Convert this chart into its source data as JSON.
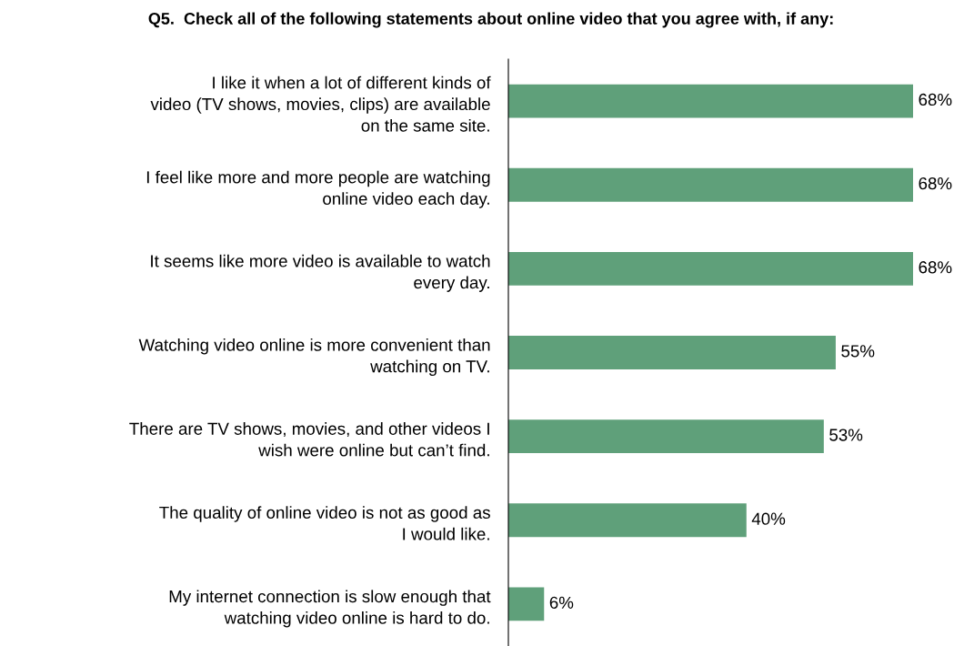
{
  "chart_data": {
    "type": "bar",
    "orientation": "horizontal",
    "title": "Q5.  Check all of the following statements about online video that you agree with, if any:",
    "categories": [
      "I like it when a lot of different kinds of video (TV shows, movies, clips) are available on the same site.",
      "I feel like more and more people are watching online video each day.",
      "It seems like more video is available to watch every day.",
      "Watching video online is more convenient than watching on TV.",
      "There are TV shows, movies, and other videos I wish were online but can’t find.",
      "The quality of online video is not as good as I would like.",
      "My internet connection is slow enough that watching video online is hard to do."
    ],
    "values": [
      68,
      68,
      68,
      55,
      53,
      40,
      6
    ],
    "color": "#5fa07a",
    "value_labels": [
      "68%",
      "68%",
      "68%",
      "55%",
      "53%",
      "40%",
      "6%"
    ],
    "grid": false,
    "legend": false
  }
}
